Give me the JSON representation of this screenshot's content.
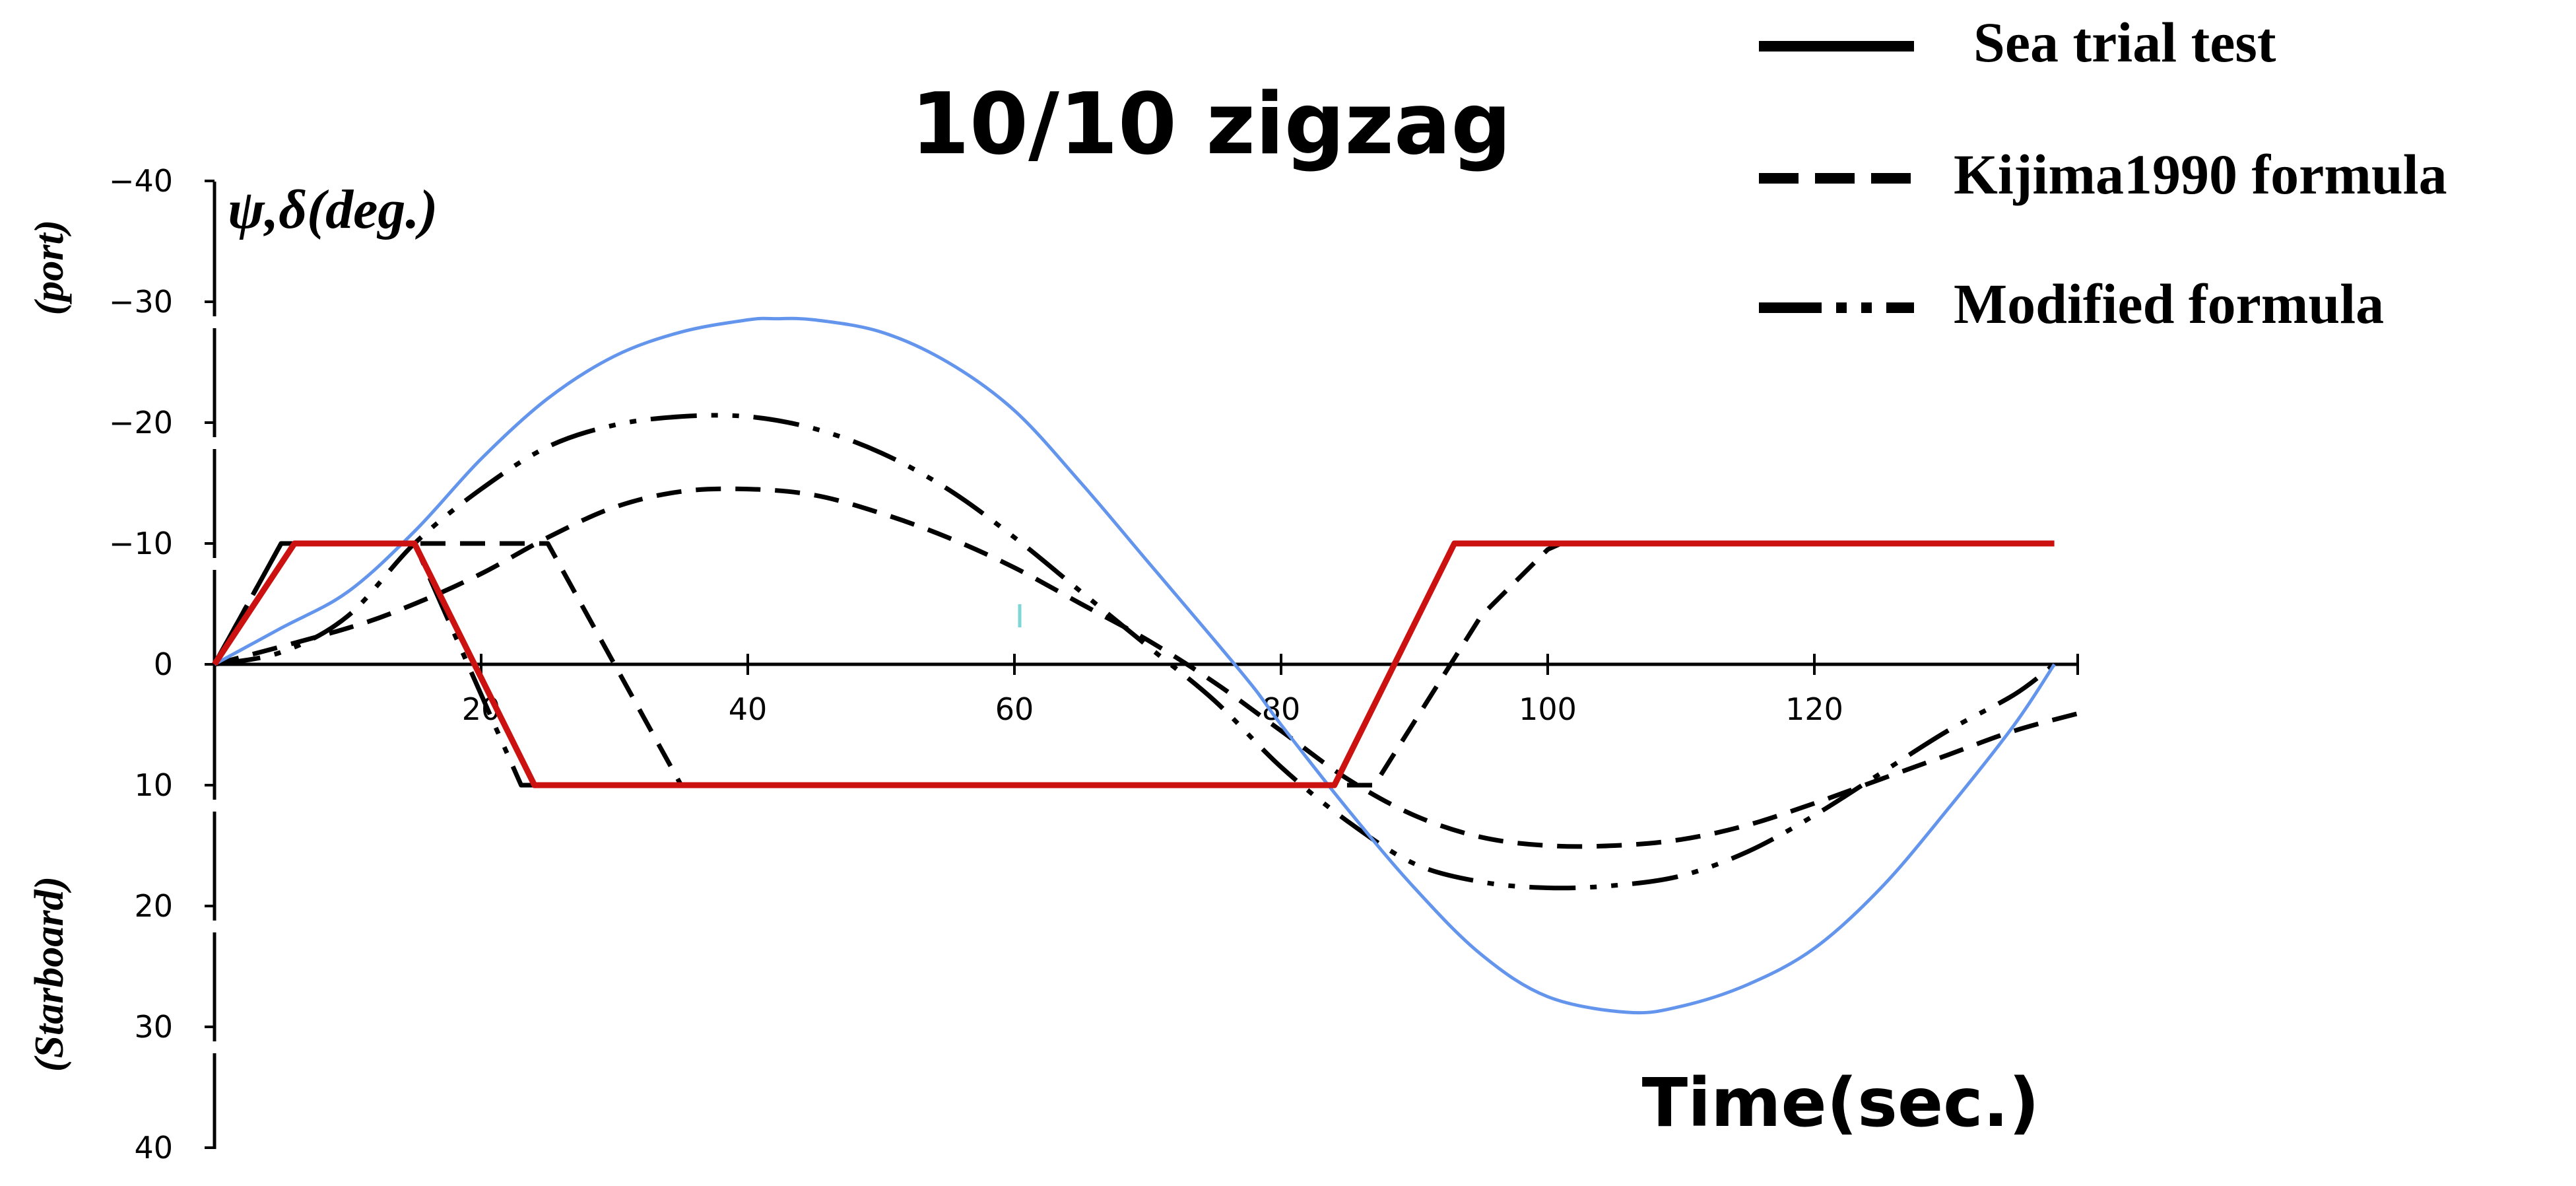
{
  "chart_data": {
    "type": "line",
    "title": "10/10 zigzag",
    "ylabel": "ψ,δ(deg.)",
    "xlabel": "Time(sec.)",
    "side_labels": {
      "top": "(port)",
      "bottom": "(Starboard)"
    },
    "xlim": [
      0,
      140
    ],
    "ylim": [
      -40,
      40
    ],
    "y_inverted": true,
    "x_ticks": [
      20,
      40,
      60,
      80,
      100,
      120
    ],
    "y_ticks": [
      -40,
      -30,
      -20,
      -10,
      0,
      10,
      20,
      30,
      40
    ],
    "y_tick_labels": [
      "−40",
      "−30",
      "−20",
      "−10",
      "0",
      "10",
      "20",
      "30",
      "40"
    ],
    "legend": [
      {
        "label": "Sea trial test",
        "style": "solid"
      },
      {
        "label": "Kijima1990 formula",
        "style": "dashed"
      },
      {
        "label": "Modified formula",
        "style": "dash-dot-dot"
      }
    ],
    "series": [
      {
        "color": "#6495ed",
        "dash": "solid",
        "x": [
          0,
          5,
          10,
          15,
          20,
          25,
          30,
          35,
          40,
          42,
          45,
          50,
          55,
          60,
          65,
          70,
          75,
          78,
          80,
          85,
          90,
          95,
          100,
          106,
          110,
          115,
          120,
          125,
          130,
          135,
          138
        ],
        "y": [
          0,
          -3,
          -6,
          -11,
          -17,
          -22,
          -25.5,
          -27.5,
          -28.5,
          -28.6,
          -28.5,
          -27.5,
          -25,
          -21,
          -15,
          -8.5,
          -2,
          2,
          5,
          12,
          18.5,
          24,
          27.5,
          28.8,
          28.3,
          26.5,
          23.5,
          18.5,
          12,
          5,
          0
        ]
      },
      {
        "color": "#cc1111",
        "dash": "solid",
        "x": [
          0,
          6,
          15,
          24,
          84,
          93,
          138
        ],
        "y": [
          0,
          -10,
          -10,
          10,
          10,
          -10,
          -10
        ]
      },
      {
        "color": "#000000",
        "dash": "dashed",
        "x": [
          0,
          10,
          15,
          20,
          25,
          30,
          35,
          40,
          45,
          50,
          55,
          60,
          65,
          70,
          75,
          80,
          85,
          90,
          95,
          100,
          105,
          110,
          115,
          120,
          125,
          130,
          135,
          140
        ],
        "y": [
          0,
          -3,
          -5,
          -7.5,
          -10.5,
          -13,
          -14.3,
          -14.5,
          -14,
          -12.5,
          -10.5,
          -8,
          -5,
          -2,
          1.5,
          5.5,
          9.5,
          12.5,
          14.3,
          15,
          15,
          14.5,
          13.3,
          11.5,
          9.5,
          7.5,
          5.5,
          4
        ]
      },
      {
        "color": "#000000",
        "dash": "dashed",
        "x": [
          0,
          5,
          15,
          25,
          35,
          40,
          84,
          87,
          95,
          100,
          101,
          138
        ],
        "y": [
          0,
          -10,
          -10,
          -10,
          10,
          10,
          10,
          10,
          -4,
          -9.5,
          -10,
          -10
        ]
      },
      {
        "color": "#000000",
        "dash": "dashdotdot",
        "x": [
          0,
          5,
          10,
          15,
          20,
          25,
          30,
          35,
          40,
          45,
          50,
          55,
          60,
          65,
          70,
          75,
          80,
          85,
          90,
          95,
          100,
          105,
          110,
          115,
          120,
          125,
          130,
          135,
          138
        ],
        "y": [
          0,
          -1,
          -4,
          -10,
          -14.5,
          -18,
          -19.8,
          -20.5,
          -20.5,
          -19.5,
          -17.5,
          -14.5,
          -10.5,
          -6,
          -1.5,
          3,
          8.5,
          13,
          16.5,
          18,
          18.5,
          18.3,
          17.5,
          15.5,
          12.5,
          9,
          5.5,
          2.5,
          0
        ]
      },
      {
        "color": "#000000",
        "dash": "dashdotdot",
        "x": [
          0,
          5,
          15,
          23,
          84,
          93,
          138
        ],
        "y": [
          0,
          -10,
          -10,
          10,
          10,
          -10,
          -10
        ]
      }
    ]
  }
}
